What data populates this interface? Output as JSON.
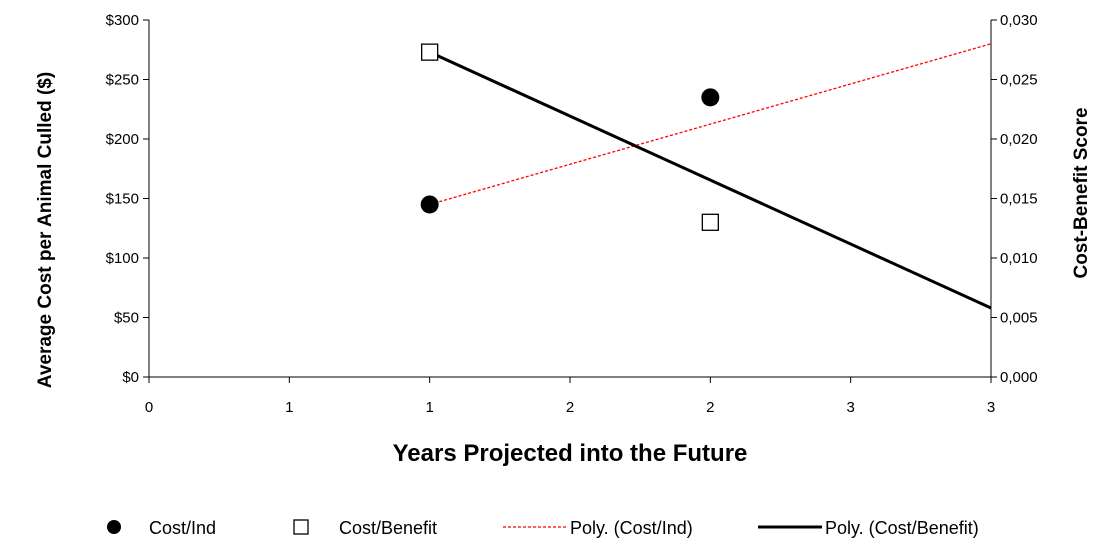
{
  "chart_data": {
    "type": "scatter",
    "xlabel": "Years Projected into the Future",
    "ylabel_left": "Average Cost  per Animal Culled ($)",
    "ylabel_right": "Cost-Benefit  Score",
    "x_ticks": [
      "0",
      "1",
      "1",
      "2",
      "2",
      "3",
      "3"
    ],
    "x_tick_values": [
      0,
      0.5,
      1,
      1.5,
      2,
      2.5,
      3
    ],
    "xlim": [
      0,
      3
    ],
    "y_left_ticks": [
      "$0",
      "$50",
      "$100",
      "$150",
      "$200",
      "$250",
      "$300"
    ],
    "y_left_tick_values": [
      0,
      50,
      100,
      150,
      200,
      250,
      300
    ],
    "ylim_left": [
      0,
      300
    ],
    "y_right_ticks": [
      "0,000",
      "0,005",
      "0,010",
      "0,015",
      "0,020",
      "0,025",
      "0,030"
    ],
    "y_right_tick_values": [
      0,
      0.005,
      0.01,
      0.015,
      0.02,
      0.025,
      0.03
    ],
    "ylim_right": [
      0,
      0.03
    ],
    "grid": false,
    "legend_position": "bottom",
    "series": [
      {
        "name": "Cost/Ind",
        "axis": "left",
        "marker": "filled-circle",
        "color": "#000000",
        "x": [
          1,
          2
        ],
        "y": [
          145,
          235
        ]
      },
      {
        "name": "Cost/Benefit",
        "axis": "right",
        "marker": "open-square",
        "color": "#000000",
        "x": [
          1,
          2
        ],
        "y": [
          0.0273,
          0.013
        ]
      }
    ],
    "trendlines": [
      {
        "name": "Poly. (Cost/Ind)",
        "axis": "left",
        "color": "#ff0000",
        "style": "dashed",
        "x": [
          1,
          3
        ],
        "y": [
          145,
          280
        ]
      },
      {
        "name": "Poly. (Cost/Benefit)",
        "axis": "right",
        "color": "#000000",
        "style": "solid",
        "x": [
          1,
          3
        ],
        "y": [
          0.0273,
          0.0058
        ]
      }
    ],
    "legend": [
      "Cost/Ind",
      "Cost/Benefit",
      "Poly. (Cost/Ind)",
      "Poly. (Cost/Benefit)"
    ]
  }
}
